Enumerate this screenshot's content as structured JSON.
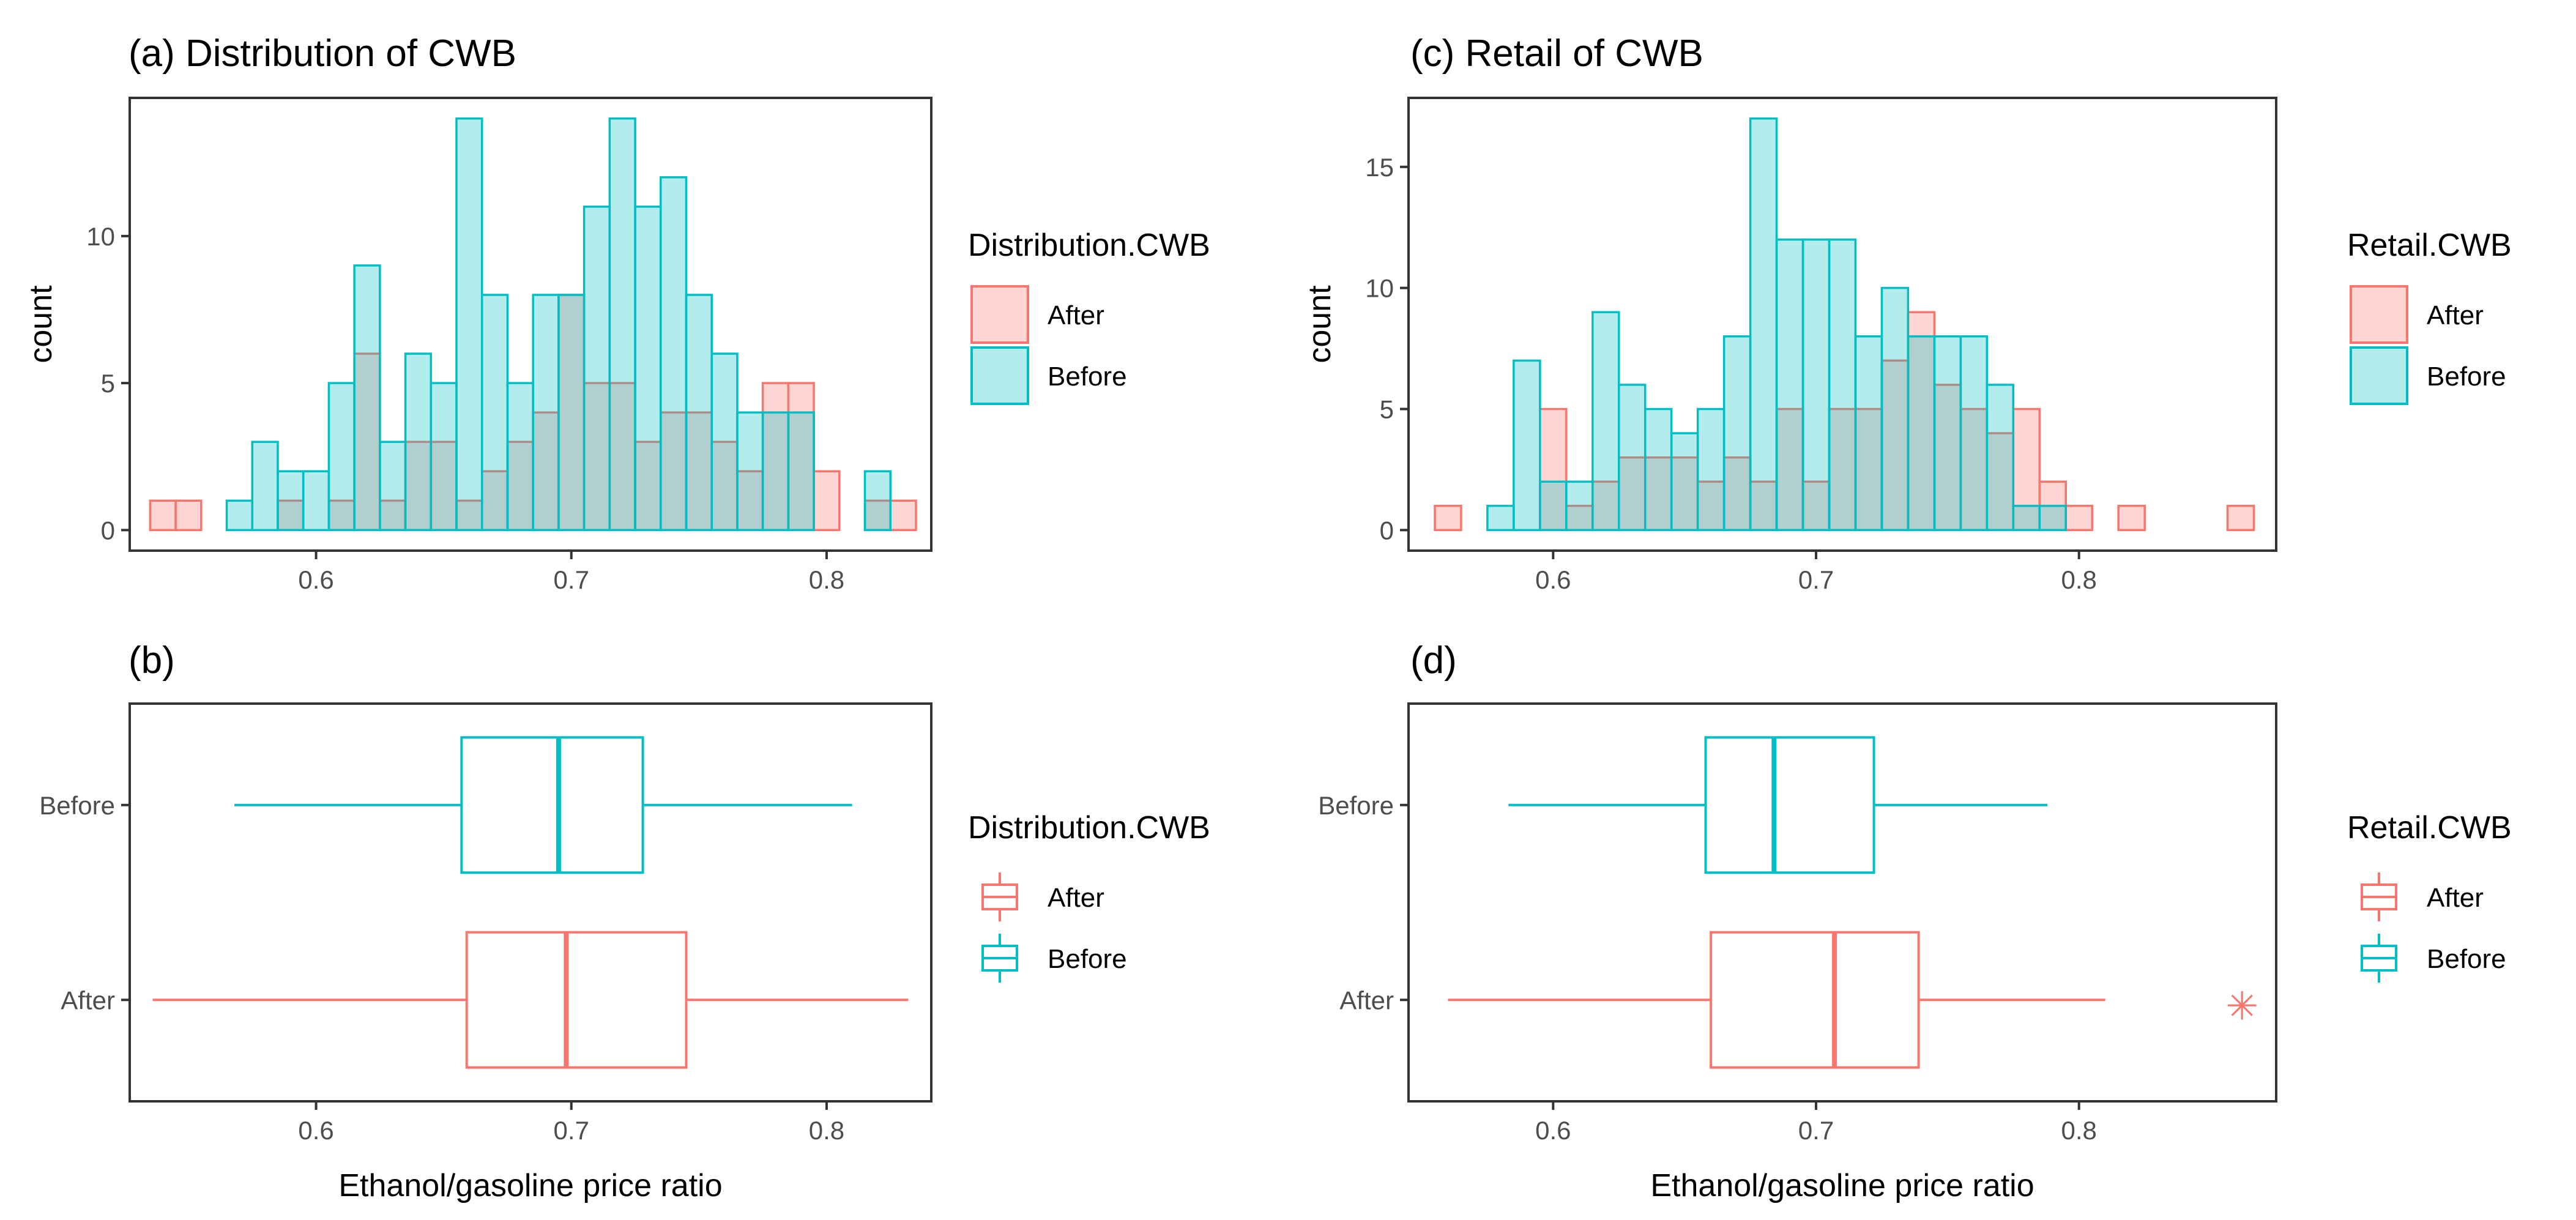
{
  "colors": {
    "after": "#F8766D",
    "before": "#00BFC4",
    "after_fill": "rgba(248,118,109,0.30)",
    "before_fill": "rgba(0,191,196,0.30)"
  },
  "chart_data": [
    {
      "id": "a",
      "type": "histogram",
      "title": "(a) Distribution of CWB",
      "xlabel": "",
      "ylabel": "count",
      "xlim": [
        0.527,
        0.841
      ],
      "ylim": [
        -0.7,
        14.7
      ],
      "x_ticks": [
        0.6,
        0.7,
        0.8
      ],
      "x_tick_labels": [
        "0.6",
        "0.7",
        "0.8"
      ],
      "y_ticks": [
        0,
        5,
        10
      ],
      "y_tick_labels": [
        "0",
        "5",
        "10"
      ],
      "bin_width": 0.01,
      "bin_start": 0.535,
      "legend": {
        "title": "Distribution.CWB",
        "entries": [
          "After",
          "Before"
        ]
      },
      "series": [
        {
          "name": "After",
          "values": [
            1,
            1,
            0,
            0,
            0,
            1,
            0,
            1,
            6,
            1,
            3,
            3,
            1,
            2,
            3,
            4,
            8,
            5,
            5,
            3,
            4,
            4,
            3,
            2,
            5,
            5,
            2,
            0,
            1,
            1
          ]
        },
        {
          "name": "Before",
          "values": [
            0,
            0,
            0,
            1,
            3,
            2,
            2,
            5,
            9,
            3,
            6,
            5,
            14,
            8,
            5,
            8,
            8,
            11,
            14,
            11,
            12,
            8,
            6,
            4,
            4,
            4,
            0,
            0,
            2,
            0
          ]
        }
      ]
    },
    {
      "id": "b",
      "type": "boxplot",
      "title": "(b)",
      "xlabel": "Ethanol/gasoline price ratio",
      "categories": [
        "Before",
        "After"
      ],
      "xlim": [
        0.527,
        0.841
      ],
      "x_ticks": [
        0.6,
        0.7,
        0.8
      ],
      "x_tick_labels": [
        "0.6",
        "0.7",
        "0.8"
      ],
      "legend": {
        "title": "Distribution.CWB",
        "entries": [
          "After",
          "Before"
        ]
      },
      "series": [
        {
          "name": "Before",
          "whisker_low": 0.568,
          "q1": 0.657,
          "median": 0.695,
          "q3": 0.728,
          "whisker_high": 0.81,
          "outliers": []
        },
        {
          "name": "After",
          "whisker_low": 0.536,
          "q1": 0.659,
          "median": 0.698,
          "q3": 0.745,
          "whisker_high": 0.832,
          "outliers": []
        }
      ]
    },
    {
      "id": "c",
      "type": "histogram",
      "title": "(c) Retail of CWB",
      "xlabel": "",
      "ylabel": "count",
      "xlim": [
        0.545,
        0.875
      ],
      "ylim": [
        -0.85,
        17.85
      ],
      "x_ticks": [
        0.6,
        0.7,
        0.8
      ],
      "x_tick_labels": [
        "0.6",
        "0.7",
        "0.8"
      ],
      "y_ticks": [
        0,
        5,
        10,
        15
      ],
      "y_tick_labels": [
        "0",
        "5",
        "10",
        "15"
      ],
      "bin_width": 0.01,
      "bin_start": 0.555,
      "legend": {
        "title": "Retail.CWB",
        "entries": [
          "After",
          "Before"
        ]
      },
      "series": [
        {
          "name": "After",
          "values": [
            1,
            0,
            0,
            0,
            5,
            1,
            2,
            3,
            3,
            3,
            2,
            3,
            2,
            5,
            2,
            5,
            5,
            7,
            9,
            6,
            5,
            4,
            5,
            2,
            1,
            0,
            1,
            0,
            0,
            0,
            0
          ]
        },
        {
          "name": "Before",
          "values": [
            0,
            0,
            1,
            7,
            2,
            2,
            9,
            6,
            5,
            4,
            5,
            8,
            17,
            12,
            12,
            12,
            8,
            10,
            8,
            8,
            8,
            6,
            1,
            1,
            0,
            0,
            0,
            0,
            0,
            0,
            0
          ]
        }
      ],
      "extra_after": [
        {
          "x": 0.8615,
          "value": 1
        }
      ]
    },
    {
      "id": "d",
      "type": "boxplot",
      "title": "(d)",
      "xlabel": "Ethanol/gasoline price ratio",
      "categories": [
        "Before",
        "After"
      ],
      "xlim": [
        0.545,
        0.875
      ],
      "x_ticks": [
        0.6,
        0.7,
        0.8
      ],
      "x_tick_labels": [
        "0.6",
        "0.7",
        "0.8"
      ],
      "legend": {
        "title": "Retail.CWB",
        "entries": [
          "After",
          "Before"
        ]
      },
      "series": [
        {
          "name": "Before",
          "whisker_low": 0.583,
          "q1": 0.658,
          "median": 0.684,
          "q3": 0.722,
          "whisker_high": 0.788,
          "outliers": []
        },
        {
          "name": "After",
          "whisker_low": 0.56,
          "q1": 0.66,
          "median": 0.707,
          "q3": 0.739,
          "whisker_high": 0.81,
          "outliers": [
            0.862
          ]
        }
      ]
    }
  ]
}
